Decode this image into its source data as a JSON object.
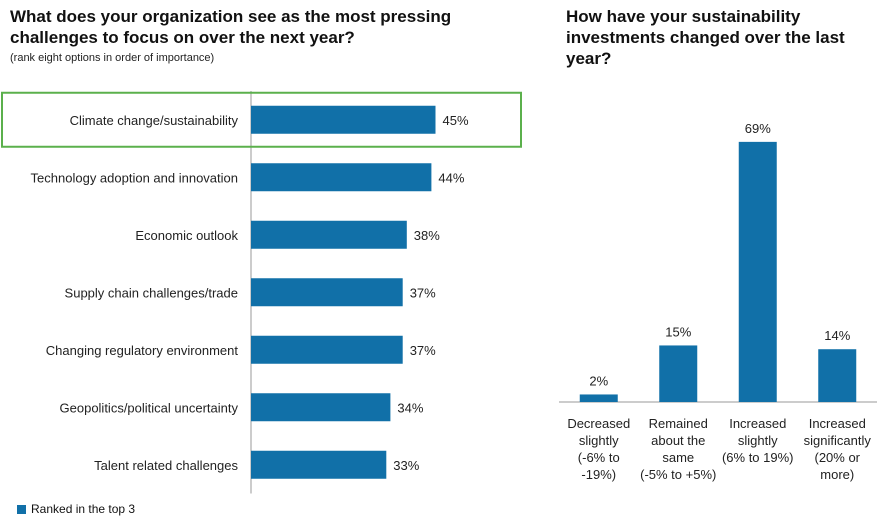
{
  "colors": {
    "bar": "#1170A8",
    "highlight": "#5BB04C",
    "axis": "#999999"
  },
  "legend": {
    "label": "Ranked in the top 3"
  },
  "chart_data": [
    {
      "type": "bar",
      "orientation": "horizontal",
      "title": "What does your organization see as the most pressing challenges to focus on over the next year?",
      "subtitle": "(rank eight options in order of importance)",
      "categories": [
        "Climate change/sustainability",
        "Technology adoption and innovation",
        "Economic outlook",
        "Supply chain challenges/trade",
        "Changing regulatory environment",
        "Geopolitics/political uncertainty",
        "Talent related challenges"
      ],
      "values": [
        45,
        44,
        38,
        37,
        37,
        34,
        33
      ],
      "labels": [
        "45%",
        "44%",
        "38%",
        "37%",
        "37%",
        "34%",
        "33%"
      ],
      "highlighted": "Climate change/sustainability",
      "unit": "%"
    },
    {
      "type": "bar",
      "orientation": "vertical",
      "title": "How have your sustainability investments changed over the last year?",
      "categories": [
        [
          "Decreased",
          "slightly",
          "(-6% to",
          "-19%)"
        ],
        [
          "Remained",
          "about the",
          "same",
          "(-5% to +5%)"
        ],
        [
          "Increased",
          "slightly",
          "(6% to 19%)"
        ],
        [
          "Increased",
          "significantly",
          "(20% or",
          "more)"
        ]
      ],
      "values": [
        2,
        15,
        69,
        14
      ],
      "labels": [
        "2%",
        "15%",
        "69%",
        "14%"
      ],
      "unit": "%"
    }
  ]
}
